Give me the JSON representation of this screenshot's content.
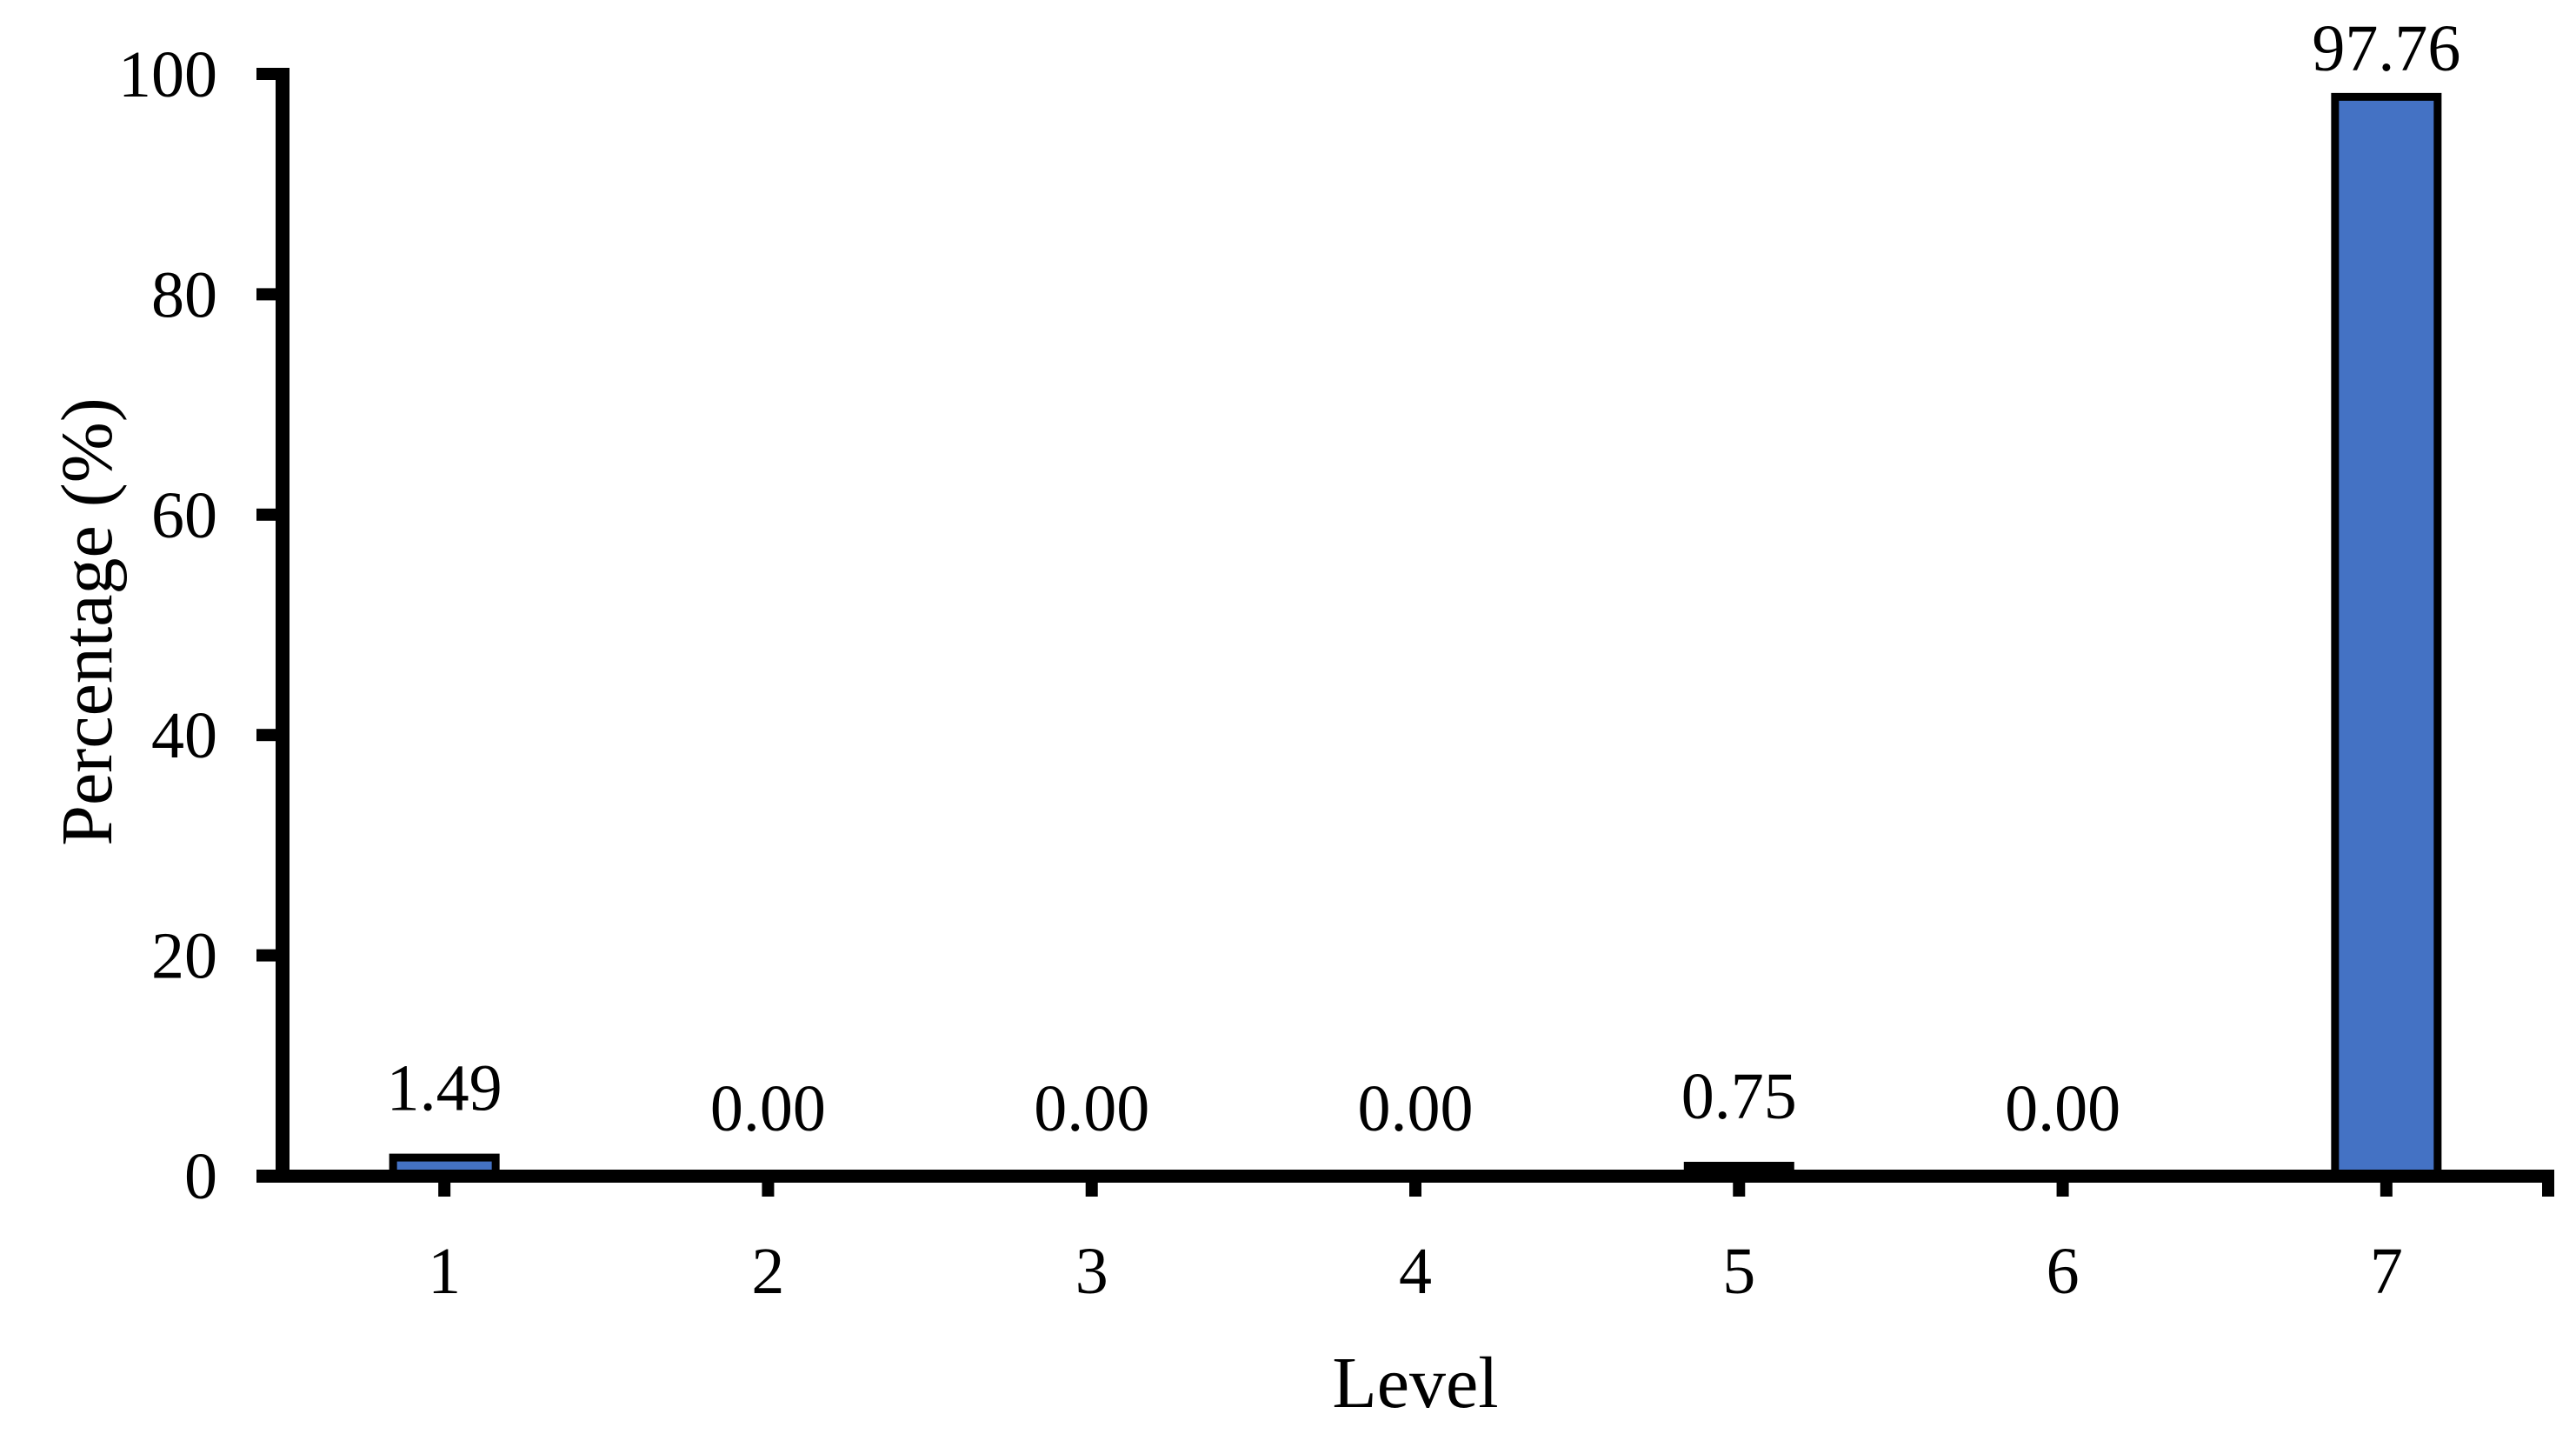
{
  "chart_data": {
    "type": "bar",
    "title": "",
    "xlabel": "Level",
    "ylabel": "Percentage (%)",
    "categories": [
      "1",
      "2",
      "3",
      "4",
      "5",
      "6",
      "7"
    ],
    "values": [
      1.49,
      0.0,
      0.0,
      0.0,
      0.75,
      0.0,
      97.76
    ],
    "value_labels": [
      "1.49",
      "0.00",
      "0.00",
      "0.00",
      "0.75",
      "0.00",
      "97.76"
    ],
    "ylim": [
      0,
      100
    ],
    "y_ticks": [
      0,
      20,
      40,
      60,
      80,
      100
    ],
    "y_tick_labels": [
      "0",
      "20",
      "40",
      "60",
      "80",
      "100"
    ],
    "grid": false,
    "legend_position": "none",
    "bar_color": "#4472C4",
    "bar_border_color": "#000000",
    "axis_color": "#000000",
    "text_color": "#000000",
    "background_color": "#ffffff"
  }
}
